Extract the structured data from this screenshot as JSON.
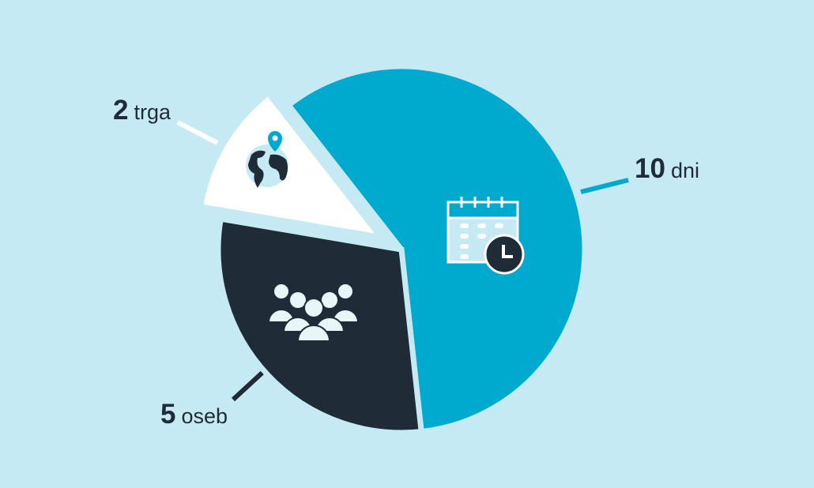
{
  "chart_data": {
    "type": "pie",
    "slices": [
      {
        "value": 10,
        "number": "10",
        "unit": "dni",
        "color": "#00a9ce",
        "icon": "calendar-clock-icon"
      },
      {
        "value": 5,
        "number": "5",
        "unit": "oseb",
        "color": "#1f2b36",
        "icon": "people-group-icon"
      },
      {
        "value": 2,
        "number": "2",
        "unit": "trga",
        "color": "#ffffff",
        "icon": "globe-pin-icon",
        "exploded": true
      }
    ],
    "background": "#c6eaf3"
  }
}
